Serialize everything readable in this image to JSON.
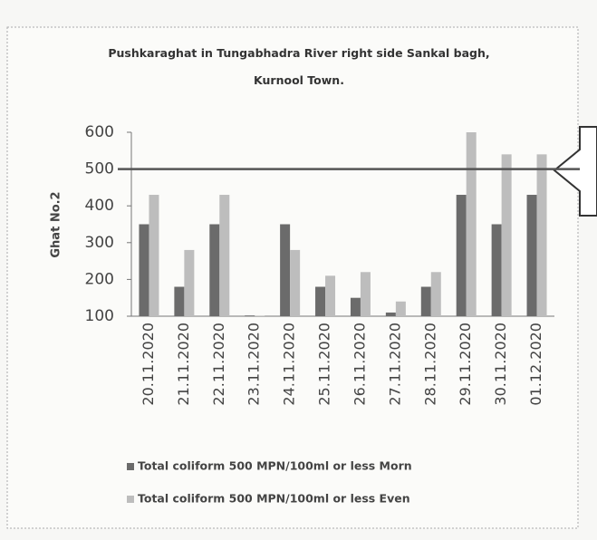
{
  "chart_data": {
    "type": "bar",
    "title": "Pushkaraghat in Tungabhadra River right side Sankal bagh, Kurnool Town.",
    "y_label": "Ghat No.2",
    "categories": [
      "20.11.2020",
      "21.11.2020",
      "22.11.2020",
      "23.11.2020",
      "24.11.2020",
      "25.11.2020",
      "26.11.2020",
      "27.11.2020",
      "28.11.2020",
      "29.11.2020",
      "30.11.2020",
      "01.12.2020"
    ],
    "series": [
      {
        "name": "Total coliform 500 MPN/100ml or less Morn",
        "color": "#6b6b6b",
        "values": [
          350,
          180,
          350,
          102,
          350,
          180,
          150,
          110,
          180,
          430,
          350,
          430
        ]
      },
      {
        "name": "Total coliform 500 MPN/100ml or less Even",
        "color": "#bdbdbd",
        "values": [
          430,
          280,
          430,
          101,
          280,
          210,
          220,
          140,
          220,
          600,
          540,
          540
        ]
      }
    ],
    "reference_line": 500,
    "ylim": [
      100,
      600
    ],
    "yticks": [
      100,
      200,
      300,
      400,
      500,
      600
    ],
    "grid": false,
    "legend": "bottom"
  }
}
